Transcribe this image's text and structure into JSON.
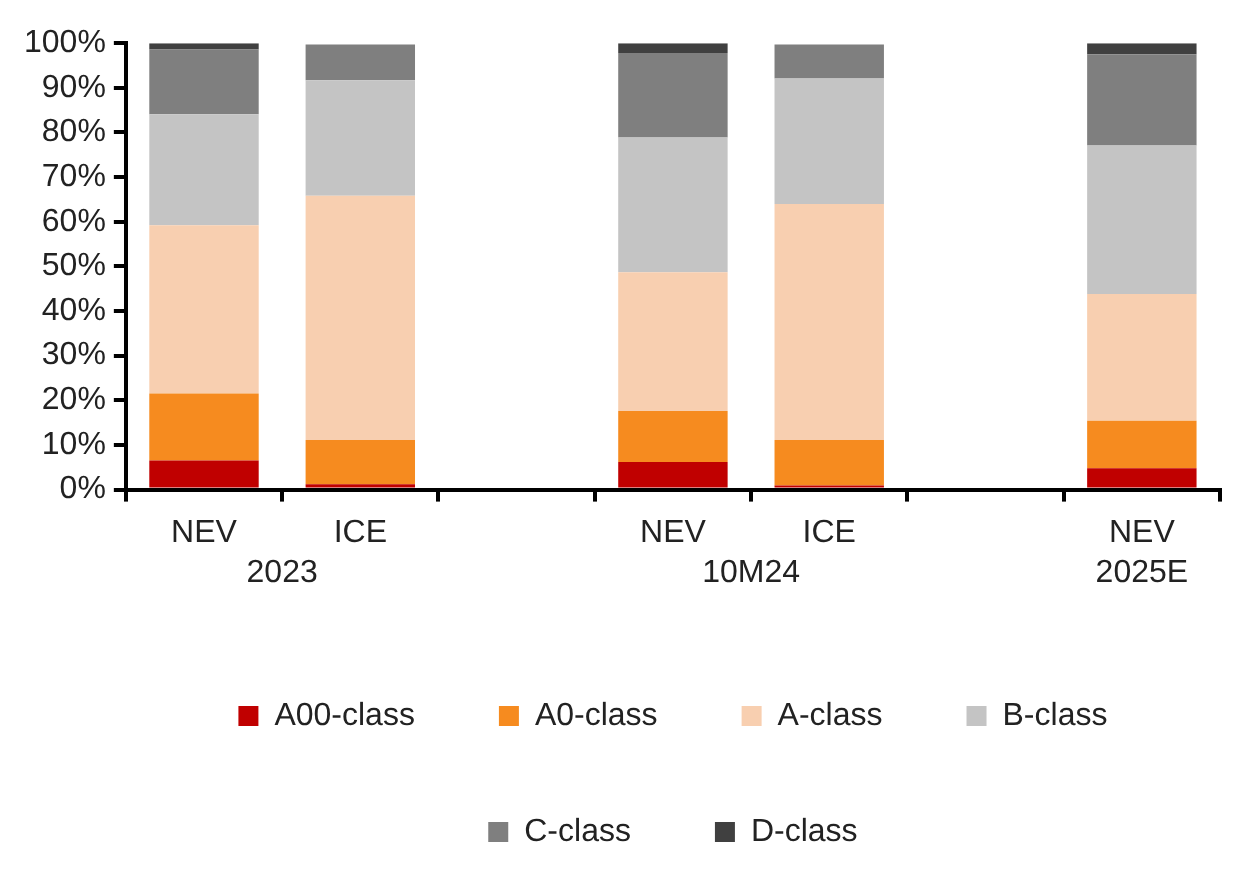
{
  "chart_data": {
    "type": "bar",
    "stacked": true,
    "categories": [
      "NEV",
      "ICE",
      null,
      "NEV",
      "ICE",
      null,
      "NEV"
    ],
    "series": [
      {
        "name": "A00-class",
        "color": "#c00000",
        "values": [
          6.5,
          1.2,
          null,
          6.2,
          0.9,
          null,
          4.8
        ]
      },
      {
        "name": "A0-class",
        "color": "#f68b1f",
        "values": [
          15.0,
          9.9,
          null,
          11.4,
          10.2,
          null,
          10.6
        ]
      },
      {
        "name": "A-class",
        "color": "#f8cfb0",
        "values": [
          37.7,
          54.7,
          null,
          31.1,
          52.9,
          null,
          28.4
        ]
      },
      {
        "name": "B-class",
        "color": "#c4c4c4",
        "values": [
          24.9,
          25.9,
          null,
          30.2,
          28.1,
          null,
          33.3
        ]
      },
      {
        "name": "C-class",
        "color": "#7f7f7f",
        "values": [
          14.5,
          8.0,
          null,
          18.9,
          7.6,
          null,
          20.4
        ]
      },
      {
        "name": "D-class",
        "color": "#404040",
        "values": [
          1.4,
          null,
          null,
          2.2,
          null,
          null,
          2.5
        ]
      }
    ],
    "ylim": [
      0,
      100
    ],
    "yticks": [
      {
        "value": 0,
        "label": "0%"
      },
      {
        "value": 10,
        "label": "10%"
      },
      {
        "value": 20,
        "label": "20%"
      },
      {
        "value": 30,
        "label": "30%"
      },
      {
        "value": 40,
        "label": "40%"
      },
      {
        "value": 50,
        "label": "50%"
      },
      {
        "value": 60,
        "label": "60%"
      },
      {
        "value": 70,
        "label": "70%"
      },
      {
        "value": 80,
        "label": "80%"
      },
      {
        "value": 90,
        "label": "90%"
      },
      {
        "value": 100,
        "label": "100%"
      }
    ],
    "annotations": [
      "2023",
      "10M24",
      "2025E"
    ],
    "grid": false,
    "legend": "bottom"
  }
}
